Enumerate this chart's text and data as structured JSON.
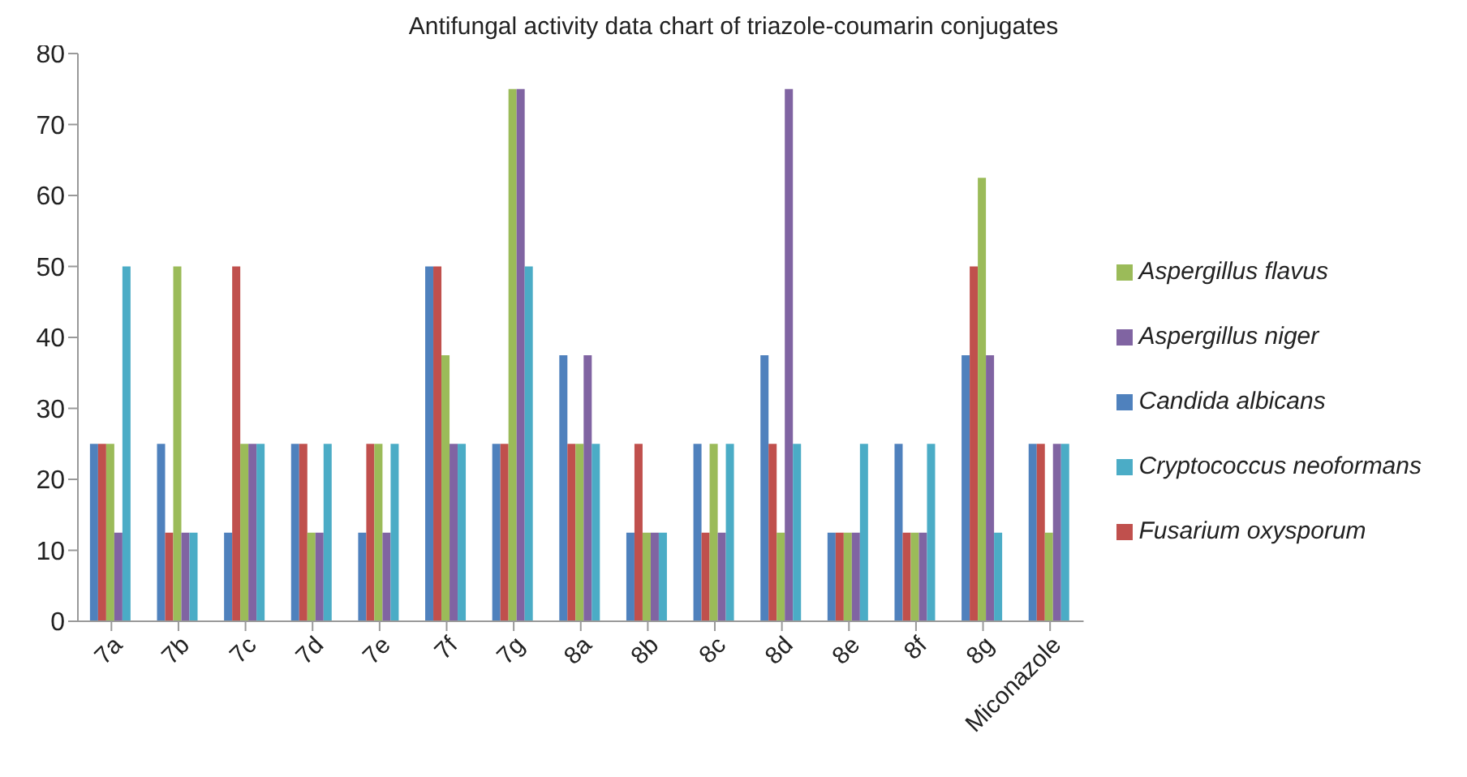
{
  "chart_data": {
    "type": "bar",
    "title": "Antifungal activity data chart of triazole-coumarin conjugates",
    "categories": [
      "7a",
      "7b",
      "7c",
      "7d",
      "7e",
      "7f",
      "7g",
      "8a",
      "8b",
      "8c",
      "8d",
      "8e",
      "8f",
      "8g",
      "Miconazole"
    ],
    "series": [
      {
        "name": "Candida albicans",
        "color": "#4f81bd",
        "values": [
          25,
          25,
          12.5,
          25,
          12.5,
          50,
          25,
          37.5,
          12.5,
          25,
          37.5,
          12.5,
          25,
          37.5,
          25
        ]
      },
      {
        "name": "Fusarium oxysporum",
        "color": "#c0504d",
        "values": [
          25,
          12.5,
          50,
          25,
          25,
          50,
          25,
          25,
          25,
          12.5,
          25,
          12.5,
          12.5,
          50,
          25
        ]
      },
      {
        "name": "Aspergillus flavus",
        "color": "#9bbb59",
        "values": [
          25,
          50,
          25,
          12.5,
          25,
          37.5,
          75,
          25,
          12.5,
          25,
          12.5,
          12.5,
          12.5,
          62.5,
          12.5
        ]
      },
      {
        "name": "Aspergillus niger",
        "color": "#8064a2",
        "values": [
          12.5,
          12.5,
          25,
          12.5,
          12.5,
          25,
          75,
          37.5,
          12.5,
          12.5,
          75,
          12.5,
          12.5,
          37.5,
          25
        ]
      },
      {
        "name": "Cryptococcus neoformans",
        "color": "#4bacc6",
        "values": [
          50,
          12.5,
          25,
          25,
          25,
          25,
          50,
          25,
          12.5,
          25,
          25,
          25,
          25,
          12.5,
          25
        ]
      }
    ],
    "ylim": [
      0,
      80
    ],
    "yticks": [
      0,
      10,
      20,
      30,
      40,
      50,
      60,
      70,
      80
    ],
    "grid": false,
    "legend": "right"
  }
}
